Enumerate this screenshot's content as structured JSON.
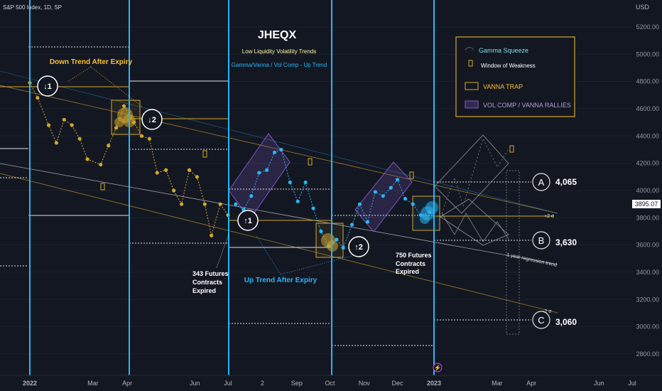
{
  "symbol": "S&P 500 Index, 1D, SP",
  "currency": "USD",
  "title": "JHEQX",
  "subtitle1": "Low Liquidity Volatility Trends",
  "subtitle2": "Gamma/Vanna / Vol Comp - Up Trend",
  "colors": {
    "bg": "#131722",
    "blue": "#29b6f6",
    "gold": "#d4a72c",
    "purple": "#7e57c2",
    "gray": "#c0c4cc",
    "accent": "#2962ff"
  },
  "legend": {
    "gamma": "Gamma Squeeze",
    "window": "Window of Weakness",
    "vanna": "VANNA TRAP",
    "volcomp": "VOL COMP / VANNA RALLIES"
  },
  "annotations": {
    "down_trend": "Down Trend After Expiry",
    "up_trend": "Up Trend After Expiry",
    "exp1_line1": "343 Futures",
    "exp1_line2": "Contracts",
    "exp1_line3": "Expired",
    "exp2_line1": "750 Futures",
    "exp2_line2": "Contracts",
    "exp2_line3": "Expired",
    "regression": "1 year regression trend",
    "sigma_up": "+2 σ",
    "sigma_down": "-2 σ",
    "circle_d1": "↓1",
    "circle_d2": "↓2",
    "circle_u1": "↑1",
    "circle_u2": "↑2",
    "lightning": "⚡"
  },
  "targets": [
    {
      "letter": "A",
      "value": "4,065"
    },
    {
      "letter": "B",
      "value": "3,630"
    },
    {
      "letter": "C",
      "value": "3,060"
    }
  ],
  "chart_data": {
    "type": "line",
    "y_ticks": [
      2800,
      3000,
      3200,
      3400,
      3600,
      3800,
      4000,
      4200,
      4400,
      4600,
      4800,
      5000,
      5200
    ],
    "y_tick_labels": [
      "2800.00",
      "3000.00",
      "3200.00",
      "3400.00",
      "3600.00",
      "3800.00",
      "4000.00",
      "4200.00",
      "4400.00",
      "4600.00",
      "4800.00",
      "5000.00",
      "5200.00"
    ],
    "x_labels": [
      "2022",
      "Mar",
      "Apr",
      "Jun",
      "Jul",
      "2",
      "Sep",
      "Oct",
      "Nov",
      "Dec",
      "2023",
      "Mar",
      "Apr",
      "Jun",
      "Jul"
    ],
    "last_price": "3895.07",
    "series": [
      {
        "color": "gold",
        "x": [
          "2022-01-03",
          "2022-01-10",
          "2022-01-20",
          "2022-01-27",
          "2022-02-03",
          "2022-02-10",
          "2022-02-17",
          "2022-02-24",
          "2022-03-08",
          "2022-03-15",
          "2022-03-22",
          "2022-03-29",
          "2022-04-07",
          "2022-04-14",
          "2022-04-21",
          "2022-04-28",
          "2022-05-06",
          "2022-05-13",
          "2022-05-20",
          "2022-05-27",
          "2022-06-03",
          "2022-06-10",
          "2022-06-16",
          "2022-06-24",
          "2022-07-01"
        ],
        "y": [
          4790,
          4680,
          4480,
          4350,
          4520,
          4480,
          4380,
          4230,
          4190,
          4330,
          4460,
          4620,
          4500,
          4400,
          4380,
          4130,
          4150,
          4000,
          3900,
          4150,
          4100,
          3900,
          3670,
          3900,
          3820
        ]
      },
      {
        "color": "blue",
        "x": [
          "2022-07-08",
          "2022-07-15",
          "2022-07-22",
          "2022-07-29",
          "2022-08-05",
          "2022-08-12",
          "2022-08-18",
          "2022-08-26",
          "2022-09-02",
          "2022-09-09",
          "2022-09-16",
          "2022-09-23",
          "2022-09-30",
          "2022-10-07",
          "2022-10-13",
          "2022-10-21",
          "2022-10-28",
          "2022-11-04",
          "2022-11-11",
          "2022-11-18",
          "2022-11-25",
          "2022-12-01",
          "2022-12-08",
          "2022-12-15",
          "2022-12-22",
          "2022-12-30"
        ],
        "y": [
          3900,
          3860,
          3960,
          4130,
          4150,
          4280,
          4300,
          4060,
          3920,
          4060,
          3870,
          3700,
          3590,
          3640,
          3580,
          3750,
          3900,
          3770,
          3990,
          3960,
          4020,
          4080,
          3940,
          3900,
          3820,
          3840
        ]
      }
    ],
    "level_lines": [
      {
        "label": "A",
        "y": 4065
      },
      {
        "label": "B",
        "y": 3630
      },
      {
        "label": "C",
        "y": 3060
      }
    ]
  }
}
